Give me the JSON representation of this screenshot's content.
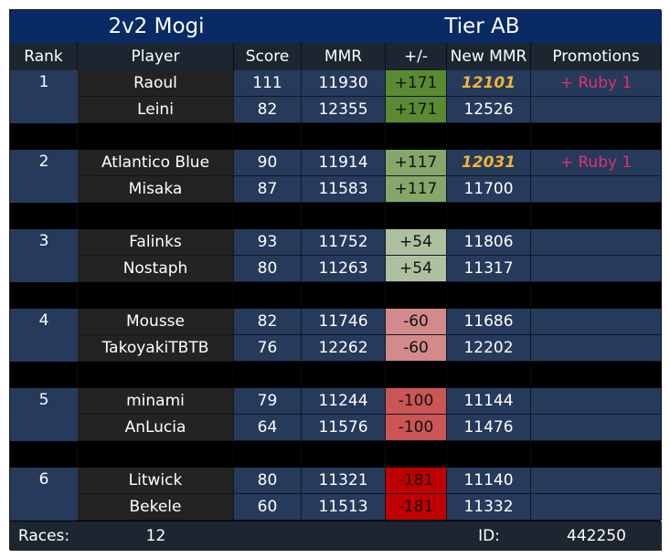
{
  "title": {
    "left": "2v2 Mogi",
    "right": "Tier AB"
  },
  "headers": [
    "Rank",
    "Player",
    "Score",
    "MMR",
    "+/-",
    "New MMR",
    "Promotions"
  ],
  "teams": [
    {
      "rank": "1",
      "players": [
        {
          "name": "Raoul",
          "score": "111",
          "mmr": "11930",
          "delta": "+171",
          "delta_color": "#5a8a32",
          "new_mmr": "12101",
          "new_highlight": true,
          "promotion": "+ Ruby 1"
        },
        {
          "name": "Leini",
          "score": "82",
          "mmr": "12355",
          "delta": "+171",
          "delta_color": "#5a8a32",
          "new_mmr": "12526",
          "new_highlight": false,
          "promotion": ""
        }
      ]
    },
    {
      "rank": "2",
      "players": [
        {
          "name": "Atlantico Blue",
          "score": "90",
          "mmr": "11914",
          "delta": "+117",
          "delta_color": "#86a66a",
          "new_mmr": "12031",
          "new_highlight": true,
          "promotion": "+ Ruby 1"
        },
        {
          "name": "Misaka",
          "score": "87",
          "mmr": "11583",
          "delta": "+117",
          "delta_color": "#86a66a",
          "new_mmr": "11700",
          "new_highlight": false,
          "promotion": ""
        }
      ]
    },
    {
      "rank": "3",
      "players": [
        {
          "name": "Falinks",
          "score": "93",
          "mmr": "11752",
          "delta": "+54",
          "delta_color": "#afc0a0",
          "new_mmr": "11806",
          "new_highlight": false,
          "promotion": ""
        },
        {
          "name": "Nostaph",
          "score": "80",
          "mmr": "11263",
          "delta": "+54",
          "delta_color": "#afc0a0",
          "new_mmr": "11317",
          "new_highlight": false,
          "promotion": ""
        }
      ]
    },
    {
      "rank": "4",
      "players": [
        {
          "name": "Mousse",
          "score": "82",
          "mmr": "11746",
          "delta": "-60",
          "delta_color": "#d28a8a",
          "new_mmr": "11686",
          "new_highlight": false,
          "promotion": ""
        },
        {
          "name": "TakoyakiTBTB",
          "score": "76",
          "mmr": "12262",
          "delta": "-60",
          "delta_color": "#d28a8a",
          "new_mmr": "12202",
          "new_highlight": false,
          "promotion": ""
        }
      ]
    },
    {
      "rank": "5",
      "players": [
        {
          "name": "minami",
          "score": "79",
          "mmr": "11244",
          "delta": "-100",
          "delta_color": "#cc5555",
          "new_mmr": "11144",
          "new_highlight": false,
          "promotion": ""
        },
        {
          "name": "AnLucia",
          "score": "64",
          "mmr": "11576",
          "delta": "-100",
          "delta_color": "#cc5555",
          "new_mmr": "11476",
          "new_highlight": false,
          "promotion": ""
        }
      ]
    },
    {
      "rank": "6",
      "players": [
        {
          "name": "Litwick",
          "score": "80",
          "mmr": "11321",
          "delta": "-181",
          "delta_color": "#c00000",
          "new_mmr": "11140",
          "new_highlight": false,
          "promotion": ""
        },
        {
          "name": "Bekele",
          "score": "60",
          "mmr": "11513",
          "delta": "-181",
          "delta_color": "#c00000",
          "new_mmr": "11332",
          "new_highlight": false,
          "promotion": ""
        }
      ]
    }
  ],
  "footer": {
    "races_label": "Races:",
    "races_value": "12",
    "id_label": "ID:",
    "id_value": "442250"
  },
  "colors": {
    "title_bg": "#082b66",
    "header_bg": "#1c2530",
    "blue_cell": "#263a5c",
    "dark_cell": "#232323",
    "promotion_text": "#e0306a",
    "highlight_mmr": "#f0b432"
  }
}
